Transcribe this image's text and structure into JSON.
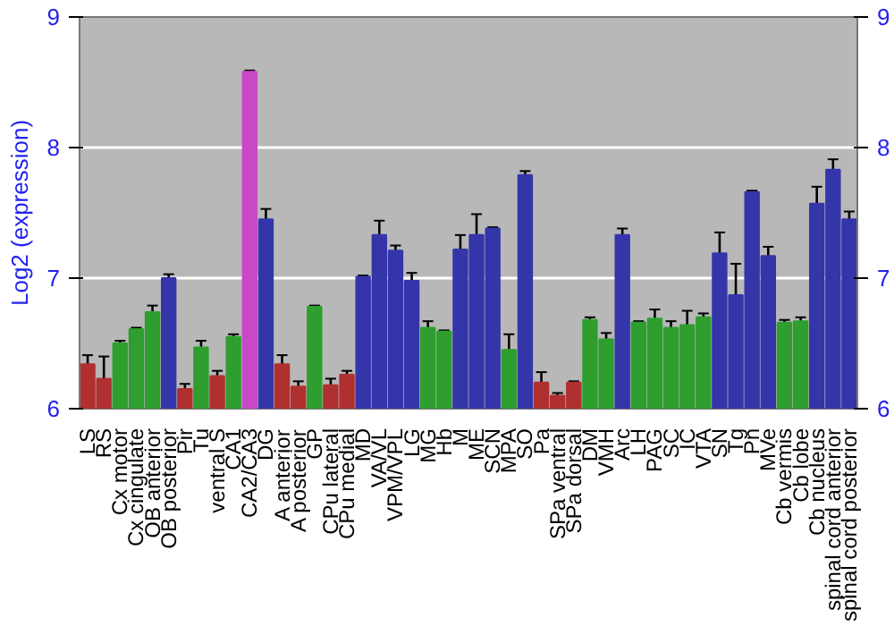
{
  "chart_data": {
    "type": "bar",
    "ylabel": "Log2 (expression)",
    "categories": [
      "LS",
      "RS",
      "Cx motor",
      "Cx cingulate",
      "OB anterior",
      "OB posterior",
      "Pir",
      "Tu",
      "ventral S",
      "CA1",
      "CA2/CA3",
      "DG",
      "A anterior",
      "A posterior",
      "GP",
      "CPu lateral",
      "CPu medial",
      "MD",
      "VA/VL",
      "VPM/VPL",
      "LG",
      "MG",
      "Hb",
      "M",
      "ME",
      "SCN",
      "MPA",
      "SO",
      "Pa",
      "SPa ventral",
      "SPa dorsal",
      "DM",
      "VMH",
      "Arc",
      "LH",
      "PAG",
      "SC",
      "IC",
      "VTA",
      "SN",
      "Tg",
      "Pn",
      "MVe",
      "Cb vermis",
      "Cb lobe",
      "Cb nucleus",
      "spinal cord anterior",
      "spinal cord posterior"
    ],
    "values": [
      6.34,
      6.23,
      6.5,
      6.61,
      6.74,
      7.0,
      6.15,
      6.47,
      6.25,
      6.55,
      8.58,
      7.45,
      6.34,
      6.17,
      6.78,
      6.18,
      6.26,
      7.01,
      7.33,
      7.21,
      6.98,
      6.62,
      6.59,
      7.22,
      7.33,
      7.38,
      6.45,
      7.79,
      6.2,
      6.1,
      6.2,
      6.68,
      6.53,
      7.33,
      6.66,
      6.69,
      6.62,
      6.64,
      6.7,
      7.19,
      6.87,
      7.66,
      7.17,
      6.66,
      6.67,
      7.57,
      7.83,
      7.45
    ],
    "errors": [
      0.07,
      0.17,
      0.02,
      0.01,
      0.05,
      0.03,
      0.04,
      0.05,
      0.04,
      0.02,
      0.01,
      0.08,
      0.07,
      0.04,
      0.01,
      0.05,
      0.03,
      0.01,
      0.11,
      0.04,
      0.06,
      0.05,
      0.01,
      0.11,
      0.16,
      0.01,
      0.12,
      0.03,
      0.08,
      0.02,
      0.01,
      0.02,
      0.05,
      0.05,
      0.01,
      0.07,
      0.05,
      0.11,
      0.03,
      0.16,
      0.24,
      0.01,
      0.07,
      0.02,
      0.03,
      0.13,
      0.08,
      0.06
    ],
    "colors": [
      "#b03030",
      "#b03030",
      "#2e9e2e",
      "#2e9e2e",
      "#2e9e2e",
      "#3535aa",
      "#b03030",
      "#2e9e2e",
      "#b03030",
      "#2e9e2e",
      "#c848c8",
      "#3535aa",
      "#b03030",
      "#b03030",
      "#2e9e2e",
      "#b03030",
      "#b03030",
      "#3535aa",
      "#3535aa",
      "#3535aa",
      "#3535aa",
      "#2e9e2e",
      "#2e9e2e",
      "#3535aa",
      "#3535aa",
      "#3535aa",
      "#2e9e2e",
      "#3535aa",
      "#b03030",
      "#b03030",
      "#b03030",
      "#2e9e2e",
      "#2e9e2e",
      "#3535aa",
      "#2e9e2e",
      "#2e9e2e",
      "#2e9e2e",
      "#2e9e2e",
      "#2e9e2e",
      "#3535aa",
      "#3535aa",
      "#3535aa",
      "#3535aa",
      "#2e9e2e",
      "#2e9e2e",
      "#3535aa",
      "#3535aa",
      "#3535aa"
    ],
    "ylim": [
      6,
      9
    ],
    "yticks": [
      6,
      7,
      8,
      9
    ],
    "y2lim": [
      6,
      9
    ],
    "y2ticks": [
      6,
      7,
      8,
      9
    ],
    "grid": "y"
  }
}
